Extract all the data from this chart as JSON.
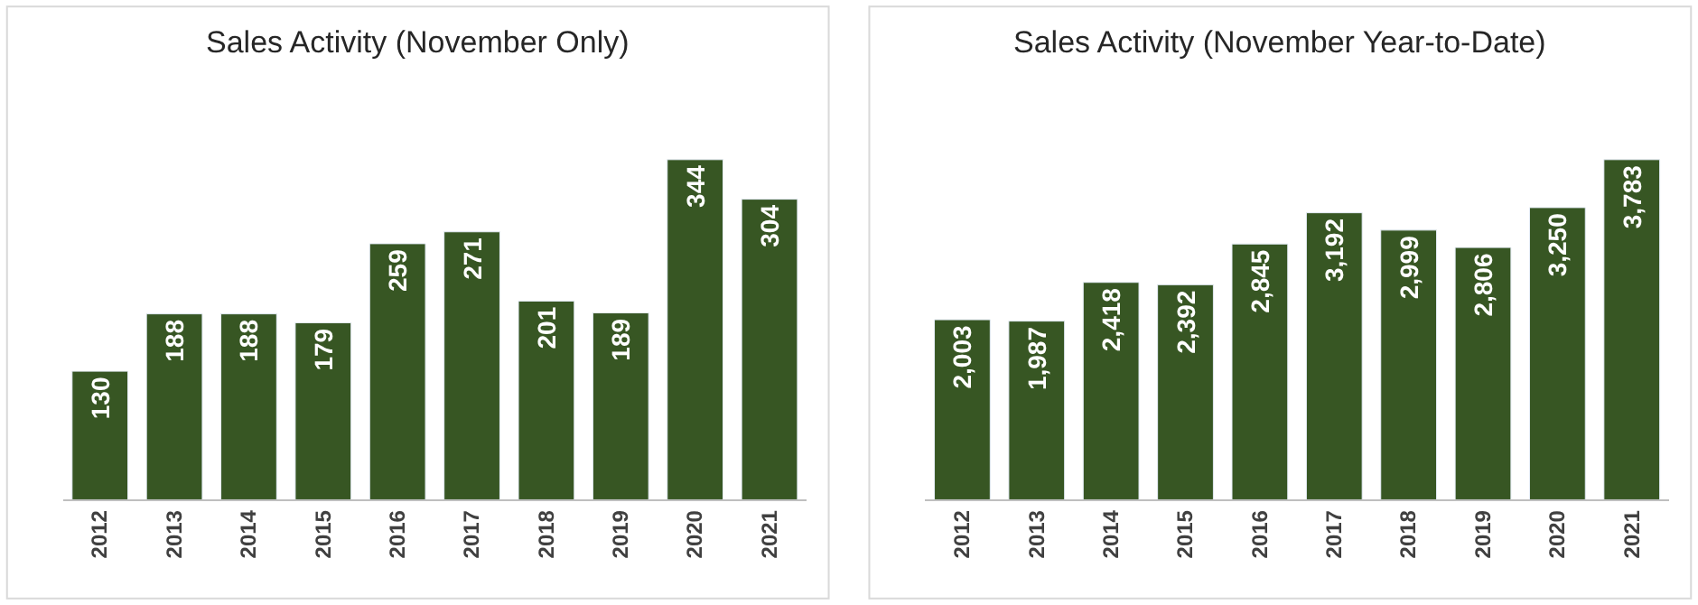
{
  "chart_data": [
    {
      "type": "bar",
      "title": "Sales Activity (November Only)",
      "categories": [
        "2012",
        "2013",
        "2014",
        "2015",
        "2016",
        "2017",
        "2018",
        "2019",
        "2020",
        "2021"
      ],
      "values": [
        130,
        188,
        188,
        179,
        259,
        271,
        201,
        189,
        344,
        304
      ],
      "color": "#375623",
      "data_labels": true
    },
    {
      "type": "bar",
      "title": "Sales Activity (November Year-to-Date)",
      "categories": [
        "2012",
        "2013",
        "2014",
        "2015",
        "2016",
        "2017",
        "2018",
        "2019",
        "2020",
        "2021"
      ],
      "values": [
        2003,
        1987,
        2418,
        2392,
        2845,
        3192,
        2999,
        2806,
        3250,
        3783
      ],
      "value_labels": [
        "2,003",
        "1,987",
        "2,418",
        "2,392",
        "2,845",
        "3,192",
        "2,999",
        "2,806",
        "3,250",
        "3,783"
      ],
      "color": "#375623"
    }
  ]
}
